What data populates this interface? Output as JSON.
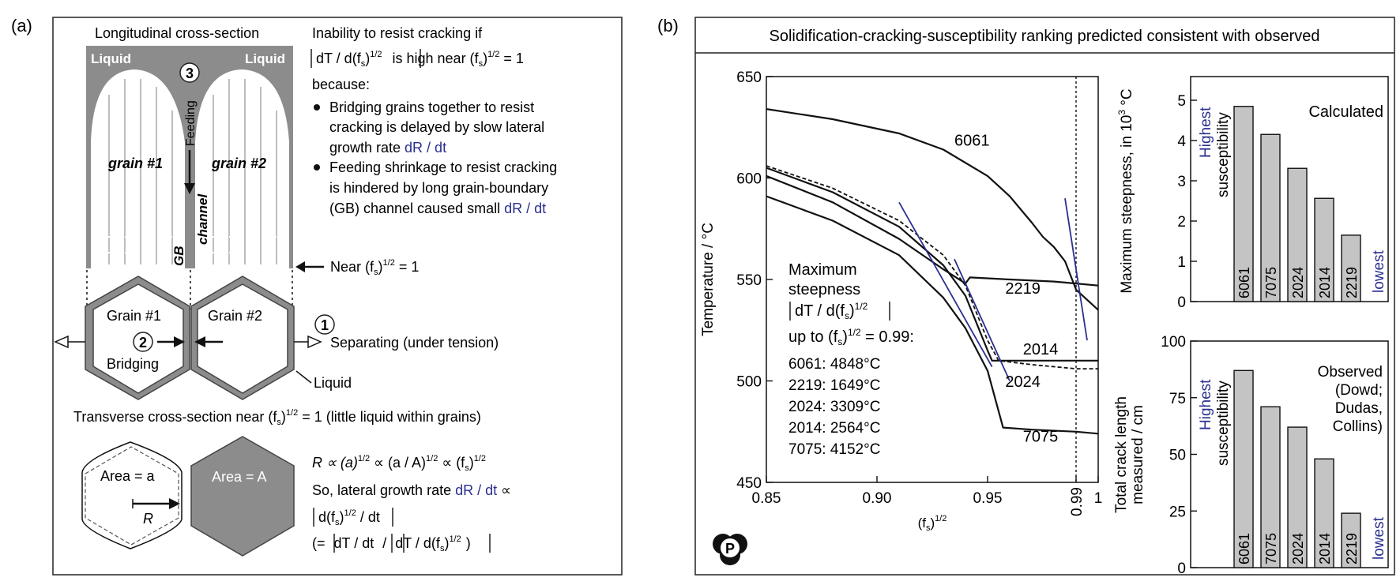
{
  "panel_a": {
    "label": "(a)",
    "longitudinal_title": "Longitudinal cross-section",
    "liquid_left": "Liquid",
    "liquid_right": "Liquid",
    "marker_3": "3",
    "feeding": "Feeding",
    "grain1_italic": "grain #1",
    "grain2_italic": "grain #2",
    "gb": "GB",
    "channel": "channel",
    "inability_line1": "Inability to resist cracking if",
    "inability_line2_a": "dT / d(f",
    "inability_line2_sub": "s",
    "inability_line2_b": ")",
    "inability_line2_sup": "1/2",
    "inability_line2_c": " is high near (f",
    "inability_line2_d": ")",
    "inability_line2_e": " = 1",
    "because": "because:",
    "bullet1": [
      "Bridging grains together to resist",
      "cracking is delayed by slow lateral",
      "growth rate "
    ],
    "bullet1_rate": "dR / dt",
    "bullet2": [
      "Feeding shrinkage to resist cracking",
      "is hindered by long grain-boundary",
      "(GB) channel caused small "
    ],
    "bullet2_rate": "dR / dt",
    "near_label": "Near (f",
    "near_tail": " = 1",
    "grain1": "Grain #1",
    "grain2": "Grain #2",
    "marker_2": "2",
    "bridging": "Bridging",
    "marker_1": "1",
    "separating": "Separating (under tension)",
    "liquid_bottom": "Liquid",
    "transverse": "Transverse cross-section near (f",
    "transverse_tail": " = 1 (little liquid within grains)",
    "area_small": "Area = a",
    "r_label": "R",
    "area_large": "Area = A",
    "eq1": "R ∝ (a)",
    "eq1_b": " ∝ (a / A)",
    "eq1_c": " ∝ (f",
    "eq2": "So, lateral growth rate ",
    "eq2_rate": "dR / dt",
    "eq2_tail": " ∝",
    "eq3": "d(f",
    "eq3_b": " / dt",
    "eq4": "(= ",
    "eq4_b": "dT / dt",
    "eq4_c": " / ",
    "eq4_d": "dT / d(f",
    "eq4_e": ")"
  },
  "panel_b": {
    "label": "(b)",
    "banner": "Solidification-cracking-susceptibility ranking predicted consistent with observed",
    "info_lines": [
      "Maximum",
      "steepness"
    ],
    "info_abs": "dT / d(f",
    "info_upto": "up to (f",
    "info_upto_tail": " = 0.99:",
    "info_values": [
      "6061: 4848°C",
      "2219: 1649°C",
      "2024: 3309°C",
      "2014: 2564°C",
      "7075: 4152°C"
    ],
    "logo": "P"
  },
  "chart_data": [
    {
      "type": "line",
      "xlabel": "(f",
      "xlabel_sub": "s",
      "xlabel_sup": "1/2",
      "ylabel": "Temperature / °C",
      "xlim": [
        0.85,
        1.0
      ],
      "ylim": [
        450,
        650
      ],
      "xticks": [
        "0.85",
        "0.90",
        "0.95",
        "0.99",
        "1"
      ],
      "yticks": [
        "650",
        "600",
        "550",
        "500",
        "450"
      ],
      "series": [
        {
          "name": "6061",
          "x": [
            0.85,
            0.88,
            0.91,
            0.93,
            0.95,
            0.96,
            0.97,
            0.975,
            0.98,
            0.985,
            0.99,
            1.0
          ],
          "y": [
            634,
            629,
            622,
            614,
            601,
            591,
            578,
            571,
            566,
            559,
            545,
            535
          ]
        },
        {
          "name": "2219",
          "x": [
            0.85,
            0.88,
            0.91,
            0.93,
            0.94,
            0.942,
            0.96,
            0.98,
            0.99,
            1.0
          ],
          "y": [
            601,
            588,
            570,
            555,
            548,
            551,
            550,
            549,
            548,
            547
          ]
        },
        {
          "name": "2014",
          "x": [
            0.85,
            0.88,
            0.91,
            0.93,
            0.94,
            0.95,
            0.952,
            0.97,
            0.99,
            1.0
          ],
          "y": [
            605,
            593,
            576,
            557,
            542,
            515,
            510,
            510,
            510,
            510
          ]
        },
        {
          "name": "2024",
          "x": [
            0.85,
            0.88,
            0.91,
            0.93,
            0.94,
            0.95,
            0.955,
            0.97,
            0.99,
            1.0
          ],
          "y": [
            606,
            595,
            579,
            562,
            547,
            520,
            510,
            508,
            506,
            506
          ]
        },
        {
          "name": "7075",
          "x": [
            0.85,
            0.88,
            0.91,
            0.93,
            0.94,
            0.95,
            0.957,
            0.97,
            0.99,
            1.0
          ],
          "y": [
            591,
            579,
            562,
            541,
            526,
            505,
            477,
            476,
            475,
            474
          ]
        }
      ],
      "series_labels": [
        "6061",
        "2219",
        "2014",
        "2024",
        "7075"
      ],
      "ref_x": 0.99
    },
    {
      "type": "bar",
      "title": "Calculated",
      "ylabel_a": "Maximum steepness, in 10",
      "ylabel_sup": "3",
      "ylabel_b": " °C",
      "ylim": [
        0,
        5
      ],
      "yticks": [
        "5",
        "4",
        "3",
        "2",
        "1",
        "0"
      ],
      "categories": [
        "6061",
        "7075",
        "2024",
        "2014",
        "2219"
      ],
      "values": [
        4.848,
        4.152,
        3.309,
        2.564,
        1.649
      ],
      "high_label": [
        "Highest",
        "susceptibility"
      ],
      "low_label": "lowest"
    },
    {
      "type": "bar",
      "title": [
        "Observed",
        "(Dowd;",
        "Dudas,",
        "Collins)"
      ],
      "ylabel": [
        "Total crack length",
        "measured / cm"
      ],
      "ylim": [
        0,
        100
      ],
      "yticks": [
        "100",
        "75",
        "50",
        "25",
        "0"
      ],
      "categories": [
        "6061",
        "7075",
        "2024",
        "2014",
        "2219"
      ],
      "values": [
        87,
        71,
        62,
        48,
        24
      ],
      "high_label": [
        "Highest",
        "susceptibility"
      ],
      "low_label": "lowest"
    }
  ],
  "colors": {
    "grain_gray": "#8c8c8c",
    "bar_gray": "#c4c4c4",
    "tangent_blue": "#2b2f8f",
    "text_blue": "#2b2f8f"
  }
}
